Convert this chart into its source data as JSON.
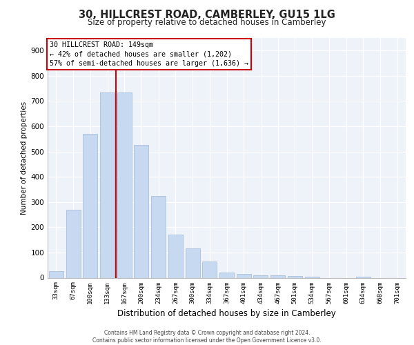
{
  "title1": "30, HILLCREST ROAD, CAMBERLEY, GU15 1LG",
  "title2": "Size of property relative to detached houses in Camberley",
  "xlabel": "Distribution of detached houses by size in Camberley",
  "ylabel": "Number of detached properties",
  "categories": [
    "33sqm",
    "67sqm",
    "100sqm",
    "133sqm",
    "167sqm",
    "200sqm",
    "234sqm",
    "267sqm",
    "300sqm",
    "334sqm",
    "367sqm",
    "401sqm",
    "434sqm",
    "467sqm",
    "501sqm",
    "534sqm",
    "567sqm",
    "601sqm",
    "634sqm",
    "668sqm",
    "701sqm"
  ],
  "values": [
    25,
    270,
    570,
    735,
    735,
    525,
    325,
    170,
    115,
    65,
    20,
    15,
    10,
    10,
    8,
    5,
    0,
    0,
    5,
    0,
    0
  ],
  "bar_color": "#c6d9f0",
  "bar_edge_color": "#a0b8d8",
  "vline_x": 3.5,
  "vline_color": "#cc0000",
  "annotation_text": "30 HILLCREST ROAD: 149sqm\n← 42% of detached houses are smaller (1,202)\n57% of semi-detached houses are larger (1,636) →",
  "annotation_box_color": "#ffffff",
  "annotation_box_edge": "#cc0000",
  "footer1": "Contains HM Land Registry data © Crown copyright and database right 2024.",
  "footer2": "Contains public sector information licensed under the Open Government Licence v3.0.",
  "bg_color": "#eef2f9",
  "ylim": [
    0,
    950
  ],
  "yticks": [
    0,
    100,
    200,
    300,
    400,
    500,
    600,
    700,
    800,
    900
  ]
}
